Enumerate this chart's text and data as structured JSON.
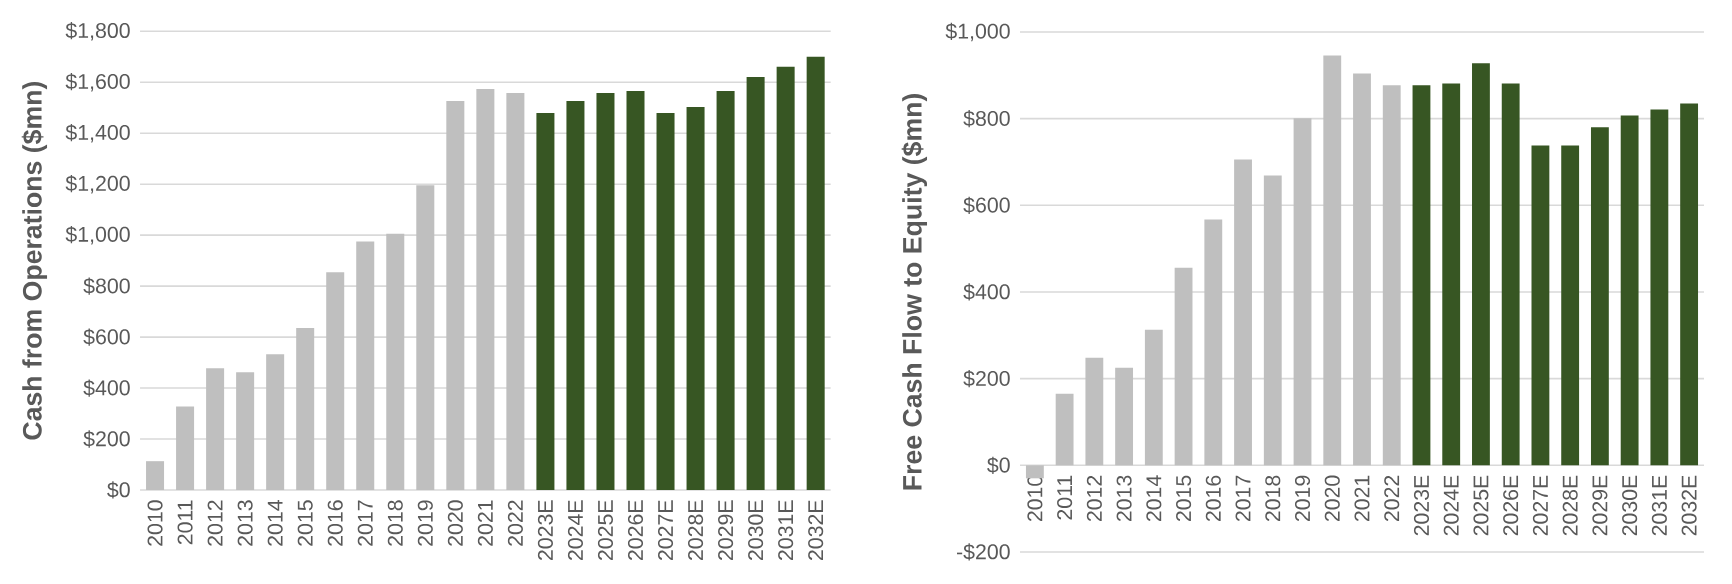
{
  "chart_data": [
    {
      "type": "bar",
      "ylabel": "Cash from Operations ($mn)",
      "categories": [
        "2010",
        "2011",
        "2012",
        "2013",
        "2014",
        "2015",
        "2016",
        "2017",
        "2018",
        "2019",
        "2020",
        "2021",
        "2022",
        "2023E",
        "2024E",
        "2025E",
        "2026E",
        "2027E",
        "2028E",
        "2029E",
        "2030E",
        "2031E",
        "2032E"
      ],
      "values": [
        113,
        328,
        478,
        462,
        533,
        636,
        854,
        975,
        1006,
        1196,
        1527,
        1574,
        1558,
        1479,
        1527,
        1558,
        1566,
        1479,
        1503,
        1566,
        1621,
        1661,
        1700
      ],
      "colors": [
        "#bfbfbf",
        "#bfbfbf",
        "#bfbfbf",
        "#bfbfbf",
        "#bfbfbf",
        "#bfbfbf",
        "#bfbfbf",
        "#bfbfbf",
        "#bfbfbf",
        "#bfbfbf",
        "#bfbfbf",
        "#bfbfbf",
        "#bfbfbf",
        "#375623",
        "#375623",
        "#375623",
        "#375623",
        "#375623",
        "#375623",
        "#375623",
        "#375623",
        "#375623",
        "#375623"
      ],
      "ylim": [
        0,
        1800
      ],
      "yticks": [
        {
          "value": 0,
          "label": "$0"
        },
        {
          "value": 200,
          "label": "$200"
        },
        {
          "value": 400,
          "label": "$400"
        },
        {
          "value": 600,
          "label": "$600"
        },
        {
          "value": 800,
          "label": "$800"
        },
        {
          "value": 1000,
          "label": "$1,000"
        },
        {
          "value": 1200,
          "label": "$1,200"
        },
        {
          "value": 1400,
          "label": "$1,400"
        },
        {
          "value": 1600,
          "label": "$1,600"
        },
        {
          "value": 1800,
          "label": "$1,800"
        }
      ],
      "grid": "y"
    },
    {
      "type": "bar",
      "ylabel": "Free Cash Flow to Equity ($mn)",
      "categories": [
        "2010",
        "2011",
        "2012",
        "2013",
        "2014",
        "2015",
        "2016",
        "2017",
        "2018",
        "2019",
        "2020",
        "2021",
        "2022",
        "2023E",
        "2024E",
        "2025E",
        "2026E",
        "2027E",
        "2028E",
        "2029E",
        "2030E",
        "2031E",
        "2032E"
      ],
      "values": [
        -30,
        165,
        248,
        225,
        313,
        456,
        567,
        706,
        669,
        801,
        946,
        904,
        877,
        877,
        881,
        928,
        881,
        738,
        738,
        780,
        807,
        821,
        835
      ],
      "colors": [
        "#bfbfbf",
        "#bfbfbf",
        "#bfbfbf",
        "#bfbfbf",
        "#bfbfbf",
        "#bfbfbf",
        "#bfbfbf",
        "#bfbfbf",
        "#bfbfbf",
        "#bfbfbf",
        "#bfbfbf",
        "#bfbfbf",
        "#bfbfbf",
        "#375623",
        "#375623",
        "#375623",
        "#375623",
        "#375623",
        "#375623",
        "#375623",
        "#375623",
        "#375623",
        "#375623"
      ],
      "ylim": [
        -200,
        1000
      ],
      "yticks": [
        {
          "value": -200,
          "label": "-$200"
        },
        {
          "value": 0,
          "label": "$0"
        },
        {
          "value": 200,
          "label": "$200"
        },
        {
          "value": 400,
          "label": "$400"
        },
        {
          "value": 600,
          "label": "$600"
        },
        {
          "value": 800,
          "label": "$800"
        },
        {
          "value": 1000,
          "label": "$1,000"
        }
      ],
      "grid": "y"
    }
  ]
}
